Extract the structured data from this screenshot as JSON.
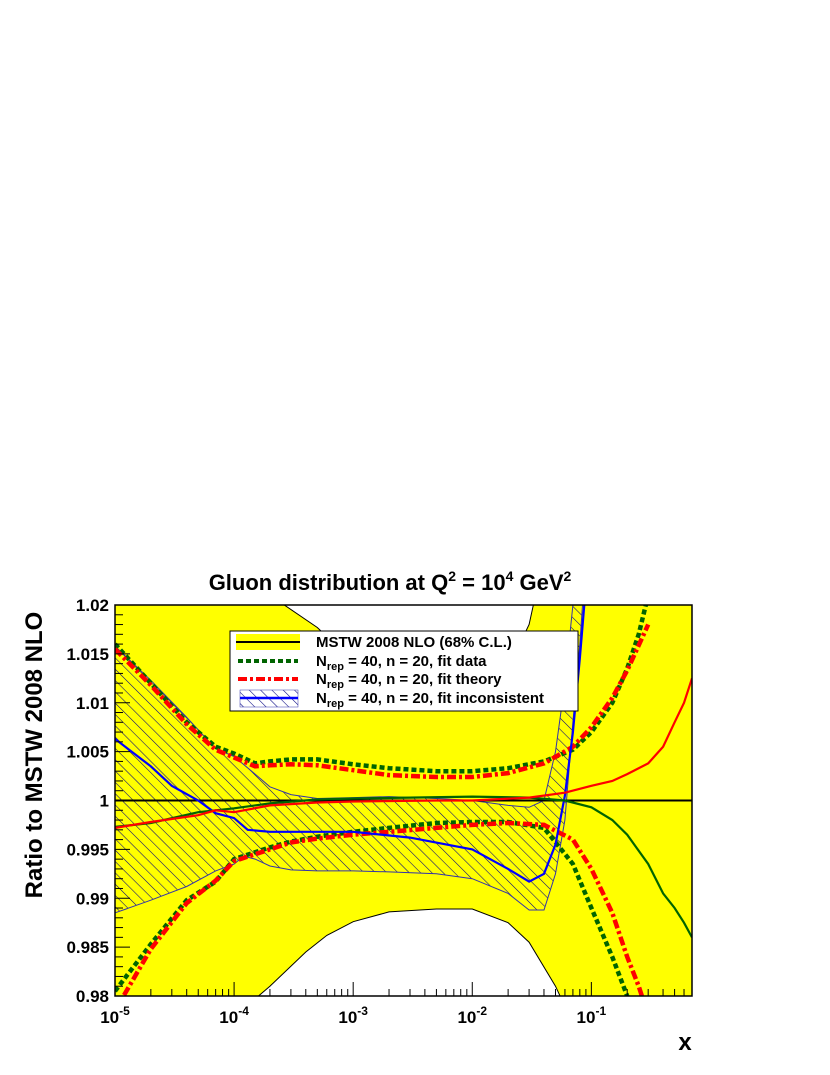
{
  "chart_data": {
    "type": "line",
    "title": {
      "base": "Gluon distribution at Q",
      "sup1": "2",
      "mid": " = 10",
      "sup2": "4",
      "unit": " GeV",
      "sup3": "2"
    },
    "xlabel": "x",
    "ylabel": "Ratio to MSTW 2008 NLO",
    "x_scale": "log",
    "xlim": [
      1e-05,
      0.7
    ],
    "ylim": [
      0.98,
      1.02
    ],
    "x_ticks": [
      {
        "value": 1e-05,
        "base": "10",
        "exp": "-5"
      },
      {
        "value": 0.0001,
        "base": "10",
        "exp": "-4"
      },
      {
        "value": 0.001,
        "base": "10",
        "exp": "-3"
      },
      {
        "value": 0.01,
        "base": "10",
        "exp": "-2"
      },
      {
        "value": 0.1,
        "base": "10",
        "exp": "-1"
      }
    ],
    "y_ticks": [
      {
        "value": 0.98,
        "label": "0.98"
      },
      {
        "value": 0.985,
        "label": "0.985"
      },
      {
        "value": 0.99,
        "label": "0.99"
      },
      {
        "value": 0.995,
        "label": "0.995"
      },
      {
        "value": 1.0,
        "label": "1"
      },
      {
        "value": 1.005,
        "label": "1.005"
      },
      {
        "value": 1.01,
        "label": "1.01"
      },
      {
        "value": 1.015,
        "label": "1.015"
      },
      {
        "value": 1.02,
        "label": "1.02"
      }
    ],
    "reference_line": 1.0,
    "band_mstw": {
      "color": "#ffff00",
      "upper": [
        [
          1e-05,
          1.03
        ],
        [
          5e-05,
          1.03
        ],
        [
          0.0001,
          1.03
        ],
        [
          0.0002,
          1.021
        ],
        [
          0.0005,
          1.0177
        ],
        [
          0.001,
          1.0142
        ],
        [
          0.002,
          1.0122
        ],
        [
          0.004,
          1.0113
        ],
        [
          0.007,
          1.0107
        ],
        [
          0.01,
          1.0107
        ],
        [
          0.015,
          1.0115
        ],
        [
          0.02,
          1.0135
        ],
        [
          0.03,
          1.018
        ],
        [
          0.04,
          1.025
        ],
        [
          0.7,
          1.03
        ]
      ],
      "lower": [
        [
          1e-05,
          0.97
        ],
        [
          0.00012,
          0.97
        ],
        [
          0.00015,
          0.9797
        ],
        [
          0.0002,
          0.981
        ],
        [
          0.0004,
          0.9845
        ],
        [
          0.0006,
          0.9862
        ],
        [
          0.001,
          0.9876
        ],
        [
          0.002,
          0.9886
        ],
        [
          0.005,
          0.9889
        ],
        [
          0.01,
          0.9889
        ],
        [
          0.02,
          0.9875
        ],
        [
          0.03,
          0.9855
        ],
        [
          0.05,
          0.981
        ],
        [
          0.065,
          0.978
        ],
        [
          0.7,
          0.97
        ]
      ]
    },
    "band_inconsistent": {
      "color": "#0000ff",
      "upper": [
        [
          1e-05,
          1.0158
        ],
        [
          2e-05,
          1.0123
        ],
        [
          4e-05,
          1.0085
        ],
        [
          7e-05,
          1.0053
        ],
        [
          0.0001,
          1.0045
        ],
        [
          0.00015,
          1.0027
        ],
        [
          0.0002,
          1.0014
        ],
        [
          0.0003,
          1.0006
        ],
        [
          0.0005,
          1.0002
        ],
        [
          0.001,
          1.0003
        ],
        [
          0.002,
          1.0004
        ],
        [
          0.005,
          1.0002
        ],
        [
          0.01,
          1.0
        ],
        [
          0.02,
          0.9995
        ],
        [
          0.03,
          0.9993
        ],
        [
          0.04,
          1.0
        ],
        [
          0.05,
          1.005
        ],
        [
          0.06,
          1.012
        ],
        [
          0.07,
          1.02
        ],
        [
          0.08,
          1.025
        ]
      ],
      "lower": [
        [
          1e-05,
          0.9885
        ],
        [
          2e-05,
          0.9898
        ],
        [
          4e-05,
          0.9912
        ],
        [
          7e-05,
          0.9928
        ],
        [
          0.0001,
          0.9935
        ],
        [
          0.00012,
          0.9943
        ],
        [
          0.00015,
          0.994
        ],
        [
          0.0002,
          0.9933
        ],
        [
          0.0003,
          0.9929
        ],
        [
          0.0005,
          0.9928
        ],
        [
          0.001,
          0.9928
        ],
        [
          0.002,
          0.9927
        ],
        [
          0.005,
          0.9925
        ],
        [
          0.01,
          0.992
        ],
        [
          0.02,
          0.9905
        ],
        [
          0.03,
          0.9888
        ],
        [
          0.04,
          0.9888
        ],
        [
          0.05,
          0.9925
        ],
        [
          0.06,
          0.998
        ],
        [
          0.07,
          1.008
        ],
        [
          0.08,
          1.016
        ],
        [
          0.09,
          1.025
        ]
      ]
    },
    "series": [
      {
        "name": "MSTW 2008 NLO (68% C.L.)",
        "role": "central",
        "color": "#000000",
        "dash": "solid",
        "points": [
          [
            1e-05,
            1.0
          ],
          [
            0.7,
            1.0
          ]
        ]
      },
      {
        "name": "fit data",
        "role": "upper",
        "color": "#006400",
        "dash": "dotted",
        "points": [
          [
            1e-05,
            1.016
          ],
          [
            2e-05,
            1.012
          ],
          [
            4e-05,
            1.008
          ],
          [
            7e-05,
            1.0055
          ],
          [
            0.0001,
            1.0048
          ],
          [
            0.00015,
            1.0038
          ],
          [
            0.0002,
            1.004
          ],
          [
            0.0003,
            1.0042
          ],
          [
            0.0005,
            1.0042
          ],
          [
            0.001,
            1.0037
          ],
          [
            0.002,
            1.0033
          ],
          [
            0.005,
            1.003
          ],
          [
            0.01,
            1.003
          ],
          [
            0.02,
            1.0033
          ],
          [
            0.04,
            1.004
          ],
          [
            0.07,
            1.0052
          ],
          [
            0.1,
            1.007
          ],
          [
            0.15,
            1.01
          ],
          [
            0.2,
            1.0135
          ],
          [
            0.25,
            1.017
          ],
          [
            0.3,
            1.021
          ]
        ]
      },
      {
        "name": "fit data",
        "role": "lower",
        "color": "#006400",
        "dash": "dotted",
        "points": [
          [
            1e-05,
            0.9805
          ],
          [
            2e-05,
            0.9853
          ],
          [
            4e-05,
            0.9898
          ],
          [
            7e-05,
            0.9917
          ],
          [
            0.0001,
            0.994
          ],
          [
            0.0002,
            0.9952
          ],
          [
            0.0003,
            0.9958
          ],
          [
            0.0005,
            0.9963
          ],
          [
            0.001,
            0.9968
          ],
          [
            0.002,
            0.9972
          ],
          [
            0.005,
            0.9977
          ],
          [
            0.01,
            0.9978
          ],
          [
            0.02,
            0.9978
          ],
          [
            0.04,
            0.9972
          ],
          [
            0.07,
            0.9935
          ],
          [
            0.1,
            0.989
          ],
          [
            0.15,
            0.984
          ],
          [
            0.2,
            0.98
          ],
          [
            0.25,
            0.977
          ]
        ]
      },
      {
        "name": "fit theory",
        "role": "upper",
        "color": "#ff0000",
        "dash": "dashdot",
        "points": [
          [
            1e-05,
            1.0155
          ],
          [
            2e-05,
            1.0118
          ],
          [
            4e-05,
            1.0078
          ],
          [
            7e-05,
            1.0052
          ],
          [
            0.0001,
            1.0044
          ],
          [
            0.00015,
            1.0035
          ],
          [
            0.0002,
            1.0036
          ],
          [
            0.0003,
            1.0037
          ],
          [
            0.0005,
            1.0036
          ],
          [
            0.001,
            1.0031
          ],
          [
            0.002,
            1.0026
          ],
          [
            0.005,
            1.0024
          ],
          [
            0.01,
            1.0024
          ],
          [
            0.02,
            1.0028
          ],
          [
            0.04,
            1.0038
          ],
          [
            0.07,
            1.0055
          ],
          [
            0.1,
            1.0075
          ],
          [
            0.15,
            1.0105
          ],
          [
            0.2,
            1.0133
          ],
          [
            0.3,
            1.018
          ]
        ]
      },
      {
        "name": "fit theory",
        "role": "lower",
        "color": "#ff0000",
        "dash": "dashdot",
        "points": [
          [
            1e-05,
            0.9785
          ],
          [
            2e-05,
            0.9848
          ],
          [
            4e-05,
            0.9895
          ],
          [
            7e-05,
            0.9918
          ],
          [
            0.0001,
            0.9938
          ],
          [
            0.0002,
            0.995
          ],
          [
            0.0003,
            0.9957
          ],
          [
            0.0005,
            0.9961
          ],
          [
            0.001,
            0.9965
          ],
          [
            0.002,
            0.9968
          ],
          [
            0.005,
            0.9972
          ],
          [
            0.01,
            0.9975
          ],
          [
            0.02,
            0.9977
          ],
          [
            0.04,
            0.9975
          ],
          [
            0.07,
            0.996
          ],
          [
            0.1,
            0.993
          ],
          [
            0.15,
            0.9885
          ],
          [
            0.2,
            0.984
          ],
          [
            0.25,
            0.981
          ],
          [
            0.3,
            0.978
          ]
        ]
      },
      {
        "name": "fit inconsistent",
        "role": "central",
        "color": "#0000ff",
        "dash": "solid",
        "points": [
          [
            1e-05,
            1.0063
          ],
          [
            2e-05,
            1.0035
          ],
          [
            3e-05,
            1.0015
          ],
          [
            5e-05,
            1.0
          ],
          [
            7e-05,
            0.9987
          ],
          [
            0.0001,
            0.9982
          ],
          [
            0.00013,
            0.997
          ],
          [
            0.0002,
            0.9968
          ],
          [
            0.0005,
            0.9968
          ],
          [
            0.001,
            0.9968
          ],
          [
            0.003,
            0.9962
          ],
          [
            0.01,
            0.995
          ],
          [
            0.02,
            0.993
          ],
          [
            0.03,
            0.9917
          ],
          [
            0.04,
            0.9925
          ],
          [
            0.05,
            0.9955
          ],
          [
            0.06,
            1.0005
          ],
          [
            0.07,
            1.007
          ],
          [
            0.08,
            1.0145
          ],
          [
            0.09,
            1.022
          ]
        ]
      },
      {
        "name": "fit inconsistent",
        "role": "extra-green",
        "color": "#006400",
        "dash": "solid",
        "points": [
          [
            1e-05,
            0.9973
          ],
          [
            2e-05,
            0.9977
          ],
          [
            5e-05,
            0.9988
          ],
          [
            0.0001,
            0.9992
          ],
          [
            0.0002,
            0.9997
          ],
          [
            0.0005,
            1.0001
          ],
          [
            0.001,
            1.0002
          ],
          [
            0.003,
            1.0003
          ],
          [
            0.01,
            1.0004
          ],
          [
            0.03,
            1.0003
          ],
          [
            0.06,
            1.0
          ],
          [
            0.1,
            0.9993
          ],
          [
            0.15,
            0.998
          ],
          [
            0.2,
            0.9965
          ],
          [
            0.3,
            0.9935
          ],
          [
            0.4,
            0.9905
          ],
          [
            0.5,
            0.989
          ],
          [
            0.6,
            0.9875
          ],
          [
            0.7,
            0.986
          ]
        ]
      },
      {
        "name": "fit inconsistent",
        "role": "extra-red",
        "color": "#ff0000",
        "dash": "solid",
        "points": [
          [
            1e-05,
            0.9972
          ],
          [
            2e-05,
            0.9978
          ],
          [
            5e-05,
            0.9985
          ],
          [
            7e-05,
            0.999
          ],
          [
            0.0001,
            0.9988
          ],
          [
            0.0002,
            0.9995
          ],
          [
            0.0005,
            0.9998
          ],
          [
            0.001,
            0.9999
          ],
          [
            0.005,
            1.0
          ],
          [
            0.01,
            1.0
          ],
          [
            0.03,
            1.0003
          ],
          [
            0.06,
            1.0008
          ],
          [
            0.1,
            1.0015
          ],
          [
            0.15,
            1.002
          ],
          [
            0.2,
            1.0027
          ],
          [
            0.3,
            1.0038
          ],
          [
            0.4,
            1.0055
          ],
          [
            0.5,
            1.008
          ],
          [
            0.6,
            1.01
          ],
          [
            0.7,
            1.0125
          ]
        ]
      }
    ],
    "legend": {
      "placement": "top-center",
      "entries": [
        {
          "label": "MSTW 2008 NLO (68% C.L.)",
          "style": "yellow-band-black-line"
        },
        {
          "sym": "N",
          "sub": "rep",
          "label": " = 40, n = 20, fit data",
          "style": "green-dotted"
        },
        {
          "sym": "N",
          "sub": "rep",
          "label": " = 40, n = 20, fit theory",
          "style": "red-dashdot"
        },
        {
          "sym": "N",
          "sub": "rep",
          "label": " = 40, n = 20, fit inconsistent",
          "style": "blue-hatched"
        }
      ]
    }
  }
}
